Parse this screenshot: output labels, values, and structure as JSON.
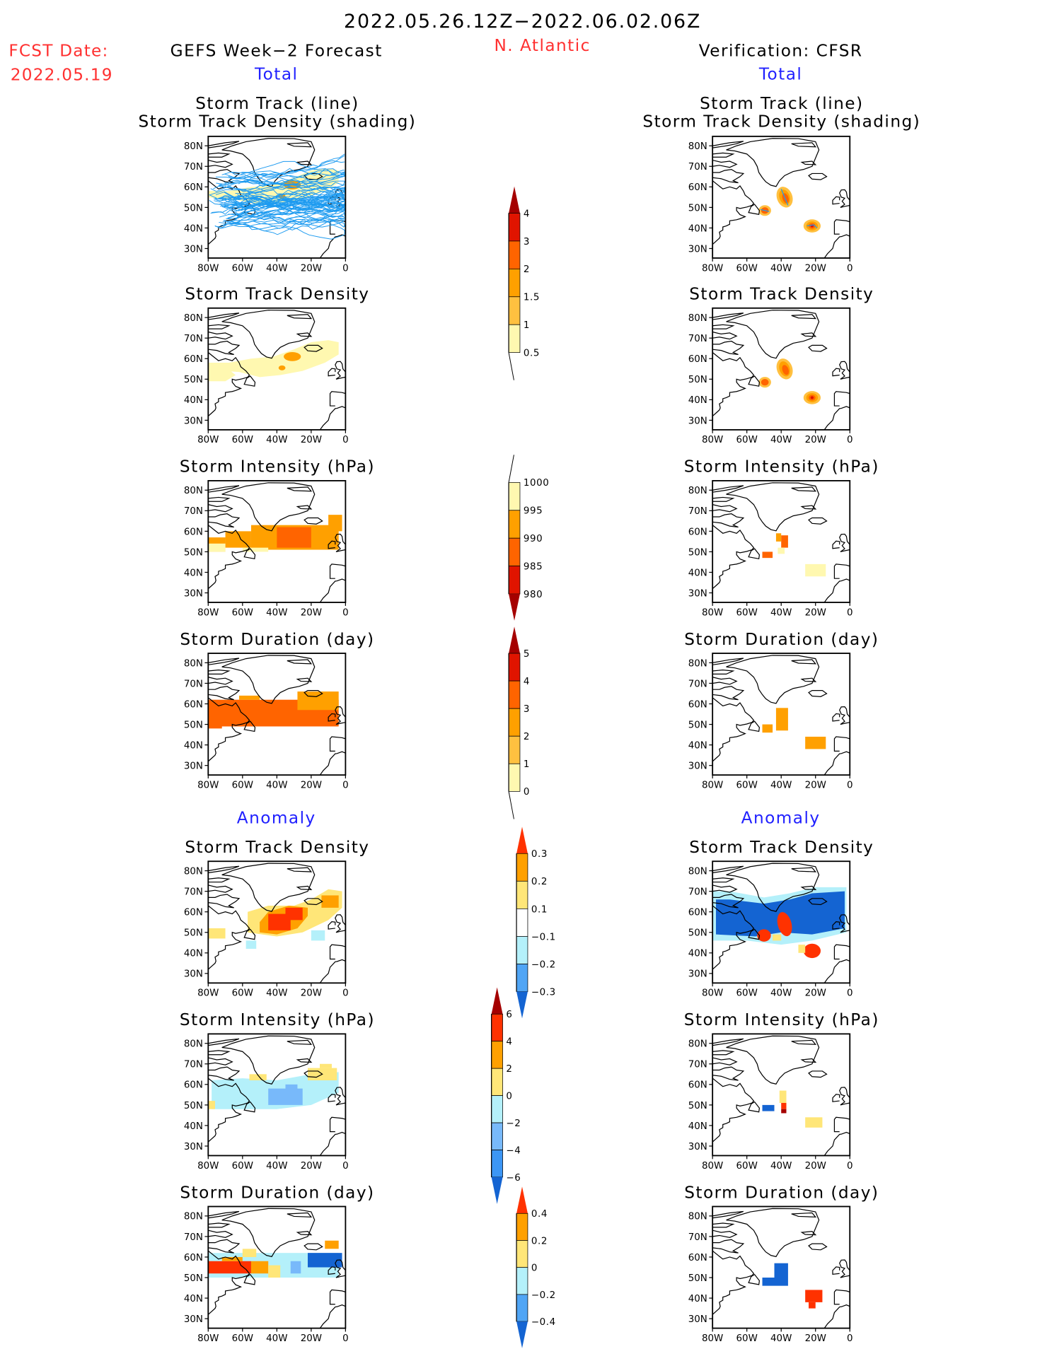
{
  "header": {
    "date_range": "2022.05.26.12Z−2022.06.02.06Z",
    "fcst_label": "FCST Date:",
    "fcst_date": "2022.05.19",
    "region": "N. Atlantic",
    "left_title": "GEFS Week−2 Forecast",
    "right_title": "Verification: CFSR",
    "total_label": "Total",
    "anomaly_label": "Anomaly"
  },
  "colors": {
    "red_text": "#ff3030",
    "blue_text": "#2020ff",
    "track_line": "#1e9bf0"
  },
  "panel_titles": {
    "track_line": "Storm Track (line)",
    "track_density_shading": "Storm Track Density (shading)",
    "track_density": "Storm Track Density",
    "intensity": "Storm Intensity (hPa)",
    "duration": "Storm Duration (day)"
  },
  "axes": {
    "lon_ticks": [
      "80W",
      "60W",
      "40W",
      "20W",
      "0"
    ],
    "lat_ticks": [
      "80N",
      "70N",
      "60N",
      "50N",
      "40N",
      "30N"
    ]
  },
  "chart_data": [
    {
      "type": "heatmap",
      "name": "track-density-total",
      "colorbar_labels": [
        "4",
        "3",
        "2",
        "1.5",
        "1",
        "0.5"
      ],
      "colors": [
        "#a50000",
        "#e01400",
        "#ff6400",
        "#ffa000",
        "#ffc040",
        "#fff8b0"
      ]
    },
    {
      "type": "heatmap",
      "name": "intensity-total",
      "colorbar_labels": [
        "1000",
        "995",
        "990",
        "985",
        "980"
      ],
      "colors": [
        "#fff8b0",
        "#ffa000",
        "#ff6400",
        "#e01400",
        "#a50000"
      ]
    },
    {
      "type": "heatmap",
      "name": "duration-total",
      "colorbar_labels": [
        "5",
        "4",
        "3",
        "2",
        "1",
        "0"
      ],
      "colors": [
        "#a50000",
        "#e01400",
        "#ff6400",
        "#ffa000",
        "#ffc040",
        "#fff8b0"
      ]
    },
    {
      "type": "heatmap",
      "name": "track-density-anomaly",
      "colorbar_labels": [
        "0.3",
        "0.2",
        "0.1",
        "−0.1",
        "−0.2",
        "−0.3"
      ],
      "colors": [
        "#ff3200",
        "#ffa000",
        "#ffe678",
        "#ffffff",
        "#b4f0fa",
        "#50a5f5",
        "#1464d2"
      ]
    },
    {
      "type": "heatmap",
      "name": "intensity-anomaly",
      "colorbar_labels": [
        "6",
        "4",
        "2",
        "0",
        "−2",
        "−4",
        "−6"
      ],
      "colors": [
        "#a50000",
        "#ff3200",
        "#ffa000",
        "#ffe678",
        "#b4f0fa",
        "#78b9fa",
        "#3c96f5",
        "#1464d2"
      ]
    },
    {
      "type": "heatmap",
      "name": "duration-anomaly",
      "colorbar_labels": [
        "0.4",
        "0.2",
        "0",
        "−0.2",
        "−0.4"
      ],
      "colors": [
        "#ff3200",
        "#ffa000",
        "#ffe678",
        "#b4f0fa",
        "#50a5f5",
        "#1464d2"
      ]
    }
  ]
}
